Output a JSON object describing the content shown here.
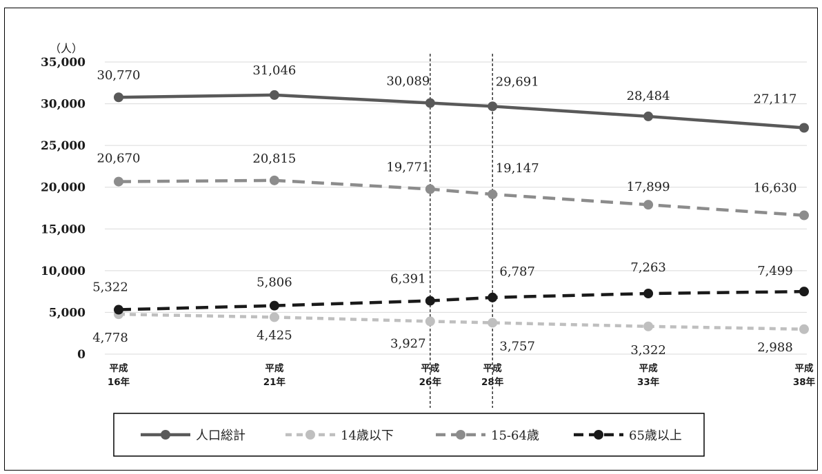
{
  "chart_data": {
    "type": "line",
    "y_unit": "（人）",
    "ylim": [
      0,
      35000
    ],
    "y_ticks": [
      "0",
      "5,000",
      "10,000",
      "15,000",
      "20,000",
      "25,000",
      "30,000",
      "35,000"
    ],
    "grid": "horizontal",
    "legend_position": "bottom",
    "categories": [
      [
        "平成",
        "16年"
      ],
      [
        "平成",
        "21年"
      ],
      [
        "平成",
        "26年"
      ],
      [
        "平成",
        "28年"
      ],
      [
        "平成",
        "33年"
      ],
      [
        "平成",
        "38年"
      ]
    ],
    "x_years": [
      16,
      21,
      26,
      28,
      33,
      38
    ],
    "vertical_reference_lines_at": [
      26,
      28
    ],
    "series": [
      {
        "name": "人口総計",
        "values": [
          30770,
          31046,
          30089,
          29691,
          28484,
          27117
        ],
        "labels": [
          "30,770",
          "31,046",
          "30,089",
          "29,691",
          "28,484",
          "27,117"
        ],
        "color": "#595959",
        "style": "solid"
      },
      {
        "name": "14歳以下",
        "values": [
          4778,
          4425,
          3927,
          3757,
          3322,
          2988
        ],
        "labels": [
          "4,778",
          "4,425",
          "3,927",
          "3,757",
          "3,322",
          "2,988"
        ],
        "color": "#bfbfbf",
        "style": "dashed"
      },
      {
        "name": "15-64歳",
        "values": [
          20670,
          20815,
          19771,
          19147,
          17899,
          16630
        ],
        "labels": [
          "20,670",
          "20,815",
          "19,771",
          "19,147",
          "17,899",
          "16,630"
        ],
        "color": "#8c8c8c",
        "style": "dashed"
      },
      {
        "name": "65歳以上",
        "values": [
          5322,
          5806,
          6391,
          6787,
          7263,
          7499
        ],
        "labels": [
          "5,322",
          "5,806",
          "6,391",
          "6,787",
          "7,263",
          "7,499"
        ],
        "color": "#1a1a1a",
        "style": "dashed"
      }
    ]
  }
}
